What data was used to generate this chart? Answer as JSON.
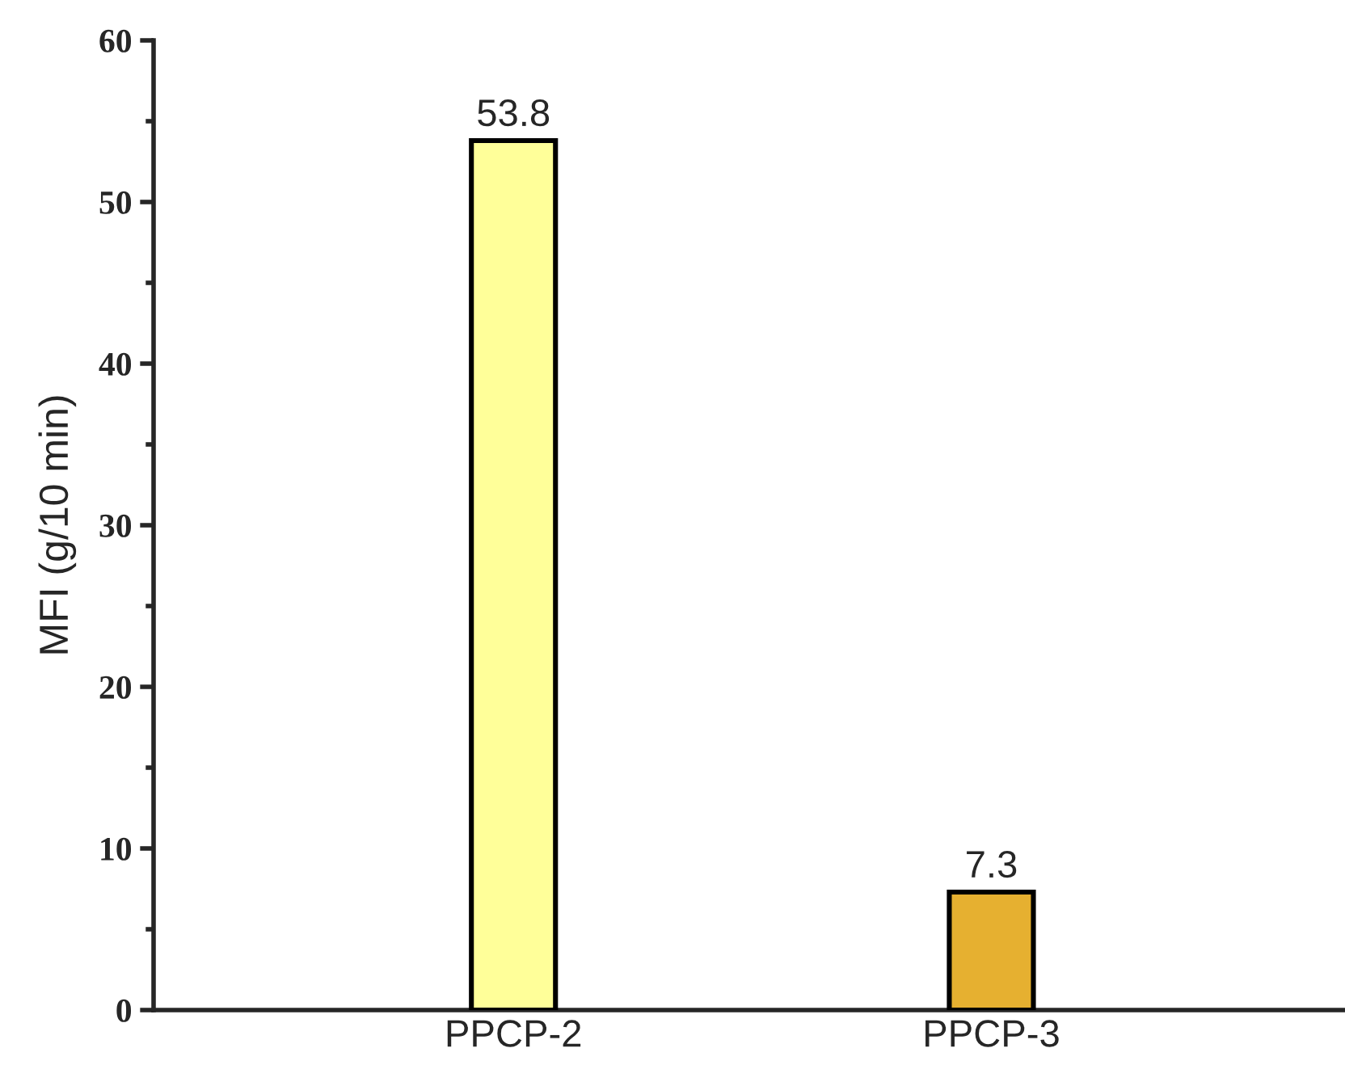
{
  "chart_data": {
    "type": "bar",
    "ylabel": "MFI (g/10 min)",
    "categories": [
      "PPCP-2",
      "PPCP-3"
    ],
    "values": [
      53.8,
      7.3
    ],
    "colors": [
      "#ffff99",
      "#e6b030"
    ],
    "ylim": [
      0,
      60
    ],
    "yticks": [
      0,
      10,
      20,
      30,
      40,
      50,
      60
    ],
    "data_labels": true,
    "grid": false,
    "legend": false
  }
}
